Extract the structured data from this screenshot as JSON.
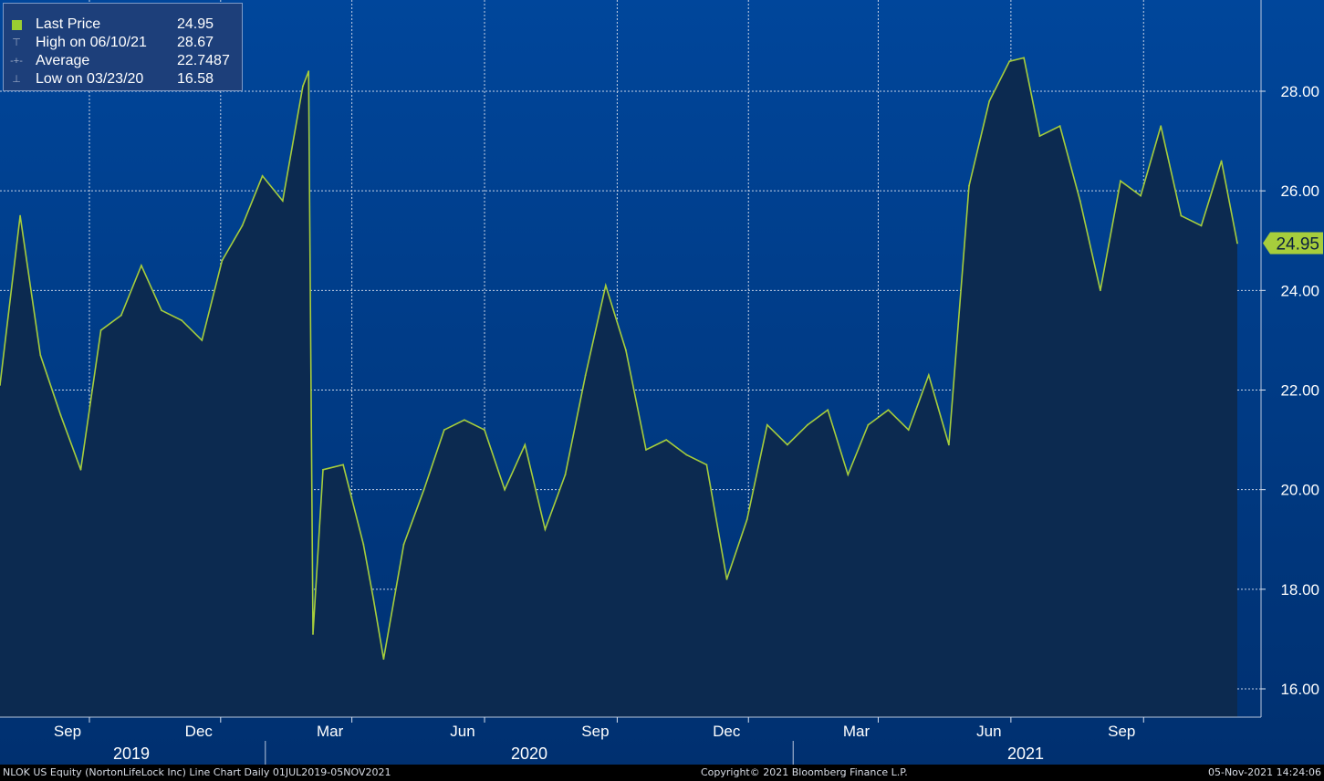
{
  "legend": {
    "rows": [
      {
        "symbol": "square-icon",
        "label": "Last Price",
        "value": "24.95"
      },
      {
        "symbol": "high-marker-icon",
        "label": "High on 06/10/21",
        "value": "28.67"
      },
      {
        "symbol": "average-marker-icon",
        "label": "Average",
        "value": "22.7487"
      },
      {
        "symbol": "low-marker-icon",
        "label": "Low on 03/23/20",
        "value": "16.58"
      }
    ]
  },
  "footer": {
    "left": "NLOK US Equity (NortonLifeLock Inc) Line Chart  Daily 01JUL2019-05NOV2021",
    "center": "Copyright© 2021 Bloomberg Finance L.P.",
    "right": "05-Nov-2021 14:24:06"
  },
  "colors": {
    "line": "#a6cd3c",
    "background_top": "#00469b",
    "background_bottom": "#003070",
    "area_fill": "#0c2a50",
    "grid": "#c8d2e6"
  },
  "chart_data": {
    "type": "area",
    "ylim": [
      15.4,
      29.8
    ],
    "yticks": [
      "16.00",
      "18.00",
      "20.00",
      "22.00",
      "24.00",
      "26.00",
      "28.00"
    ],
    "month_ticks": [
      "Sep",
      "Dec",
      "Mar",
      "Jun",
      "Sep",
      "Dec",
      "Mar",
      "Jun",
      "Sep"
    ],
    "year_labels": [
      "2019",
      "2020",
      "2021"
    ],
    "last_value_label": "24.95",
    "x": [
      "2019-07-01",
      "2019-07-15",
      "2019-07-29",
      "2019-08-12",
      "2019-08-26",
      "2019-09-09",
      "2019-09-23",
      "2019-10-07",
      "2019-10-21",
      "2019-11-04",
      "2019-11-18",
      "2019-12-02",
      "2019-12-16",
      "2019-12-30",
      "2020-01-13",
      "2020-01-27",
      "2020-01-31",
      "2020-02-03",
      "2020-02-10",
      "2020-02-24",
      "2020-03-09",
      "2020-03-16",
      "2020-03-23",
      "2020-04-06",
      "2020-04-20",
      "2020-05-04",
      "2020-05-18",
      "2020-06-01",
      "2020-06-15",
      "2020-06-29",
      "2020-07-13",
      "2020-07-27",
      "2020-08-10",
      "2020-08-24",
      "2020-09-07",
      "2020-09-21",
      "2020-10-05",
      "2020-10-19",
      "2020-11-02",
      "2020-11-16",
      "2020-11-30",
      "2020-12-14",
      "2020-12-28",
      "2021-01-11",
      "2021-01-25",
      "2021-02-08",
      "2021-02-22",
      "2021-03-08",
      "2021-03-22",
      "2021-04-05",
      "2021-04-19",
      "2021-05-03",
      "2021-05-17",
      "2021-05-31",
      "2021-06-10",
      "2021-06-21",
      "2021-07-05",
      "2021-07-19",
      "2021-08-02",
      "2021-08-16",
      "2021-08-30",
      "2021-09-13",
      "2021-09-27",
      "2021-10-11",
      "2021-10-25",
      "2021-11-05"
    ],
    "values": [
      22.1,
      25.5,
      22.7,
      21.5,
      20.4,
      23.2,
      23.5,
      24.5,
      23.6,
      23.4,
      23.0,
      24.6,
      25.3,
      26.3,
      25.8,
      28.1,
      28.4,
      17.1,
      20.4,
      20.5,
      18.9,
      17.8,
      16.6,
      18.9,
      20.0,
      21.2,
      21.4,
      21.2,
      20.0,
      20.9,
      19.2,
      20.3,
      22.3,
      24.1,
      22.8,
      20.8,
      21.0,
      20.7,
      20.5,
      18.2,
      19.4,
      21.3,
      20.9,
      21.3,
      21.6,
      20.3,
      21.3,
      21.6,
      21.2,
      22.3,
      20.9,
      26.1,
      27.8,
      28.6,
      28.67,
      27.1,
      27.3,
      25.8,
      24.0,
      26.2,
      25.9,
      27.3,
      25.5,
      25.3,
      26.6,
      24.95
    ]
  }
}
